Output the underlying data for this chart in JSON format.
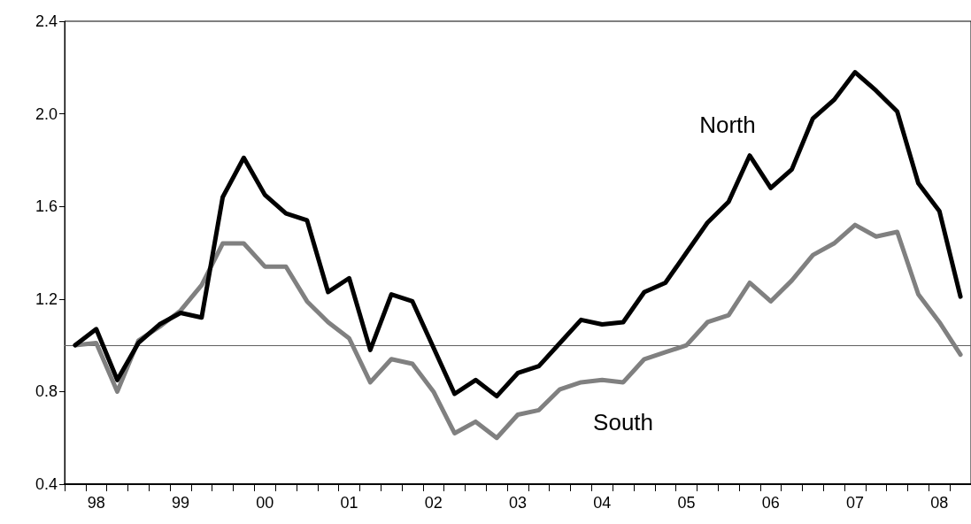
{
  "chart_data": {
    "type": "line",
    "categories": [
      null,
      "98",
      null,
      null,
      null,
      "99",
      null,
      null,
      null,
      "00",
      null,
      null,
      null,
      "01",
      null,
      null,
      null,
      "02",
      null,
      null,
      null,
      "03",
      null,
      null,
      null,
      "04",
      null,
      null,
      null,
      "05",
      null,
      null,
      null,
      "06",
      null,
      null,
      null,
      "07",
      null,
      null,
      null,
      "08",
      null
    ],
    "series": [
      {
        "name": "North",
        "color": "#000000",
        "values": [
          1.0,
          1.07,
          0.85,
          1.01,
          1.09,
          1.14,
          1.12,
          1.64,
          1.81,
          1.65,
          1.57,
          1.54,
          1.23,
          1.29,
          0.98,
          1.22,
          1.19,
          0.99,
          0.79,
          0.85,
          0.78,
          0.88,
          0.91,
          1.01,
          1.11,
          1.09,
          1.1,
          1.23,
          1.27,
          1.4,
          1.53,
          1.62,
          1.82,
          1.68,
          1.76,
          1.98,
          2.06,
          2.18,
          2.1,
          2.01,
          1.7,
          1.58,
          1.21
        ]
      },
      {
        "name": "South",
        "color": "#808080",
        "values": [
          1.0,
          1.01,
          0.8,
          1.02,
          1.08,
          1.15,
          1.26,
          1.44,
          1.44,
          1.34,
          1.34,
          1.19,
          1.1,
          1.03,
          0.84,
          0.94,
          0.92,
          0.8,
          0.62,
          0.67,
          0.6,
          0.7,
          0.72,
          0.81,
          0.84,
          0.85,
          0.84,
          0.94,
          0.97,
          1.0,
          1.1,
          1.13,
          1.27,
          1.19,
          1.28,
          1.39,
          1.44,
          1.52,
          1.47,
          1.49,
          1.22,
          1.1,
          0.96
        ]
      }
    ],
    "ylim": [
      0.4,
      2.4
    ],
    "yticks": [
      0.4,
      0.8,
      1.2,
      1.6,
      {
        "value": 2,
        "label": "2.0"
      },
      2.4
    ],
    "ref_lines": [
      {
        "axis": "y",
        "value": 1.0,
        "color": "#606060"
      }
    ],
    "grid": false,
    "legend": false,
    "marker": "none",
    "line_style": "solid"
  }
}
